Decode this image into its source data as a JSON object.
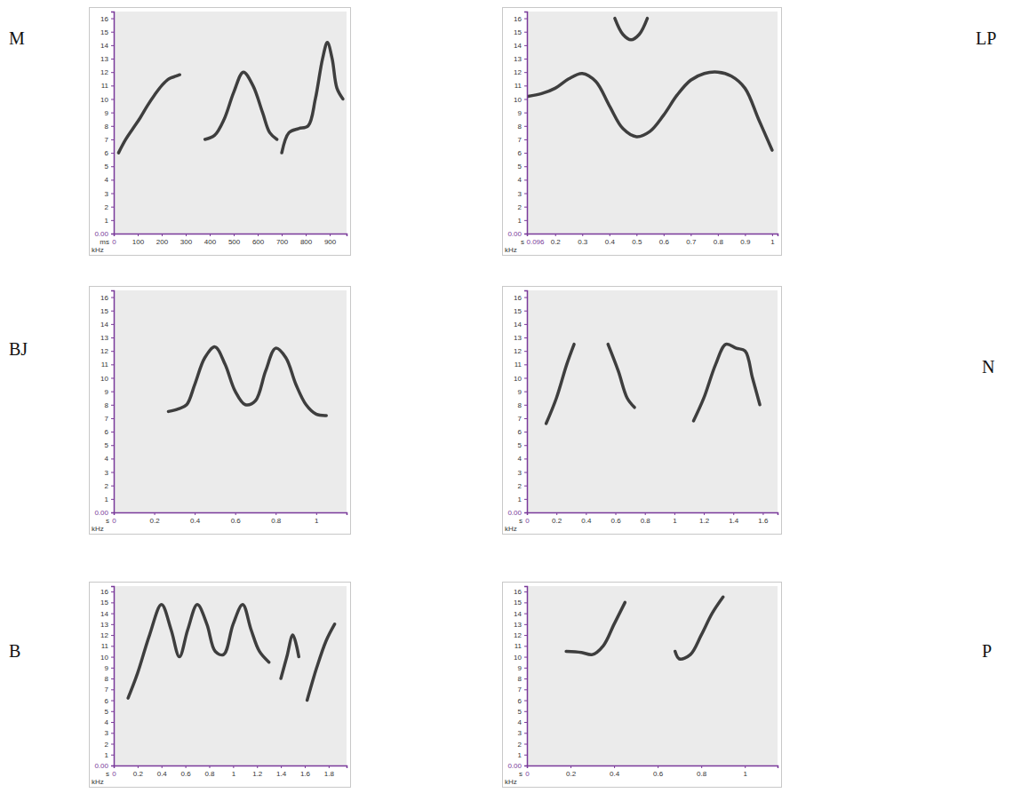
{
  "chart_data": [
    {
      "type": "line",
      "title": "M",
      "x_label": "ms",
      "y_label": "kHz",
      "xlim": [
        0,
        970
      ],
      "xticks": [
        0,
        100,
        200,
        300,
        400,
        500,
        600,
        700,
        800,
        900
      ],
      "ylim": [
        0,
        16.5
      ],
      "yticks": [
        {
          "value": 0,
          "label": "0.00"
        },
        1,
        2,
        3,
        4,
        5,
        6,
        7,
        8,
        9,
        10,
        11,
        12,
        13,
        14,
        15,
        16
      ],
      "series": [
        {
          "color": "#2b2b2b",
          "x": [
            20,
            50,
            80,
            110,
            140,
            170,
            200,
            230,
            260,
            275
          ],
          "values": [
            6.0,
            7.0,
            7.8,
            8.6,
            9.5,
            10.3,
            11.0,
            11.5,
            11.7,
            11.8
          ]
        },
        {
          "color": "#2b2b2b",
          "x": [
            380,
            420,
            460,
            500,
            540,
            580,
            620,
            650,
            680
          ],
          "values": [
            7.0,
            7.3,
            8.5,
            10.5,
            12.0,
            11.0,
            9.0,
            7.5,
            7.0
          ]
        },
        {
          "color": "#2b2b2b",
          "x": [
            700,
            730,
            770,
            810,
            840,
            870,
            890,
            910,
            930,
            955
          ],
          "values": [
            6.0,
            7.5,
            7.8,
            8.0,
            10.0,
            13.0,
            14.2,
            13.0,
            10.8,
            10.0
          ]
        }
      ]
    },
    {
      "type": "line",
      "title": "LP",
      "x_label": "s",
      "y_label": "kHz",
      "xlim": [
        0.096,
        1.02
      ],
      "xticks": [
        0.096,
        0.2,
        0.3,
        0.4,
        0.5,
        0.6,
        0.7,
        0.8,
        0.9,
        1
      ],
      "ylim": [
        0,
        16.5
      ],
      "yticks": [
        {
          "value": 0,
          "label": "0.00"
        },
        1,
        2,
        3,
        4,
        5,
        6,
        7,
        8,
        9,
        10,
        11,
        12,
        13,
        14,
        15,
        16
      ],
      "series": [
        {
          "color": "#2b2b2b",
          "x": [
            0.1,
            0.15,
            0.2,
            0.25,
            0.3,
            0.35,
            0.4,
            0.45,
            0.5,
            0.55,
            0.6,
            0.65,
            0.7,
            0.75,
            0.8,
            0.85,
            0.9,
            0.95,
            1.0
          ],
          "values": [
            10.2,
            10.4,
            10.8,
            11.5,
            11.9,
            11.3,
            9.5,
            7.8,
            7.2,
            7.6,
            8.8,
            10.3,
            11.4,
            11.9,
            12.0,
            11.7,
            10.8,
            8.5,
            6.2
          ]
        },
        {
          "color": "#2b2b2b",
          "x": [
            0.42,
            0.45,
            0.48,
            0.51,
            0.54
          ],
          "values": [
            16.0,
            14.8,
            14.4,
            14.8,
            16.0
          ]
        }
      ]
    },
    {
      "type": "line",
      "title": "BJ",
      "x_label": "s",
      "y_label": "kHz",
      "xlim": [
        0,
        1.15
      ],
      "xticks": [
        0,
        0.2,
        0.4,
        0.6,
        0.8,
        1
      ],
      "ylim": [
        0,
        16.5
      ],
      "yticks": [
        {
          "value": 0,
          "label": "0.00"
        },
        1,
        2,
        3,
        4,
        5,
        6,
        7,
        8,
        9,
        10,
        11,
        12,
        13,
        14,
        15,
        16
      ],
      "series": [
        {
          "color": "#2b2b2b",
          "x": [
            0.27,
            0.32,
            0.36,
            0.4,
            0.45,
            0.5,
            0.55,
            0.6,
            0.65,
            0.7,
            0.75,
            0.8,
            0.85,
            0.9,
            0.95,
            1.0,
            1.05
          ],
          "values": [
            7.5,
            7.7,
            8.0,
            9.5,
            11.5,
            12.3,
            11.0,
            9.0,
            8.0,
            8.3,
            10.5,
            12.2,
            11.5,
            9.5,
            8.0,
            7.3,
            7.2
          ]
        }
      ]
    },
    {
      "type": "line",
      "title": "N",
      "x_label": "s",
      "y_label": "kHz",
      "xlim": [
        0,
        1.7
      ],
      "xticks": [
        0,
        0.2,
        0.4,
        0.6,
        0.8,
        1,
        1.2,
        1.4,
        1.6
      ],
      "ylim": [
        0,
        16.5
      ],
      "yticks": [
        {
          "value": 0,
          "label": "0.00"
        },
        1,
        2,
        3,
        4,
        5,
        6,
        7,
        8,
        9,
        10,
        11,
        12,
        13,
        14,
        15,
        16
      ],
      "series": [
        {
          "color": "#2b2b2b",
          "x": [
            0.13,
            0.2,
            0.27,
            0.32
          ],
          "values": [
            6.6,
            8.5,
            11.0,
            12.5
          ]
        },
        {
          "color": "#2b2b2b",
          "x": [
            0.55,
            0.62,
            0.68,
            0.73
          ],
          "values": [
            12.5,
            10.5,
            8.5,
            7.8
          ]
        },
        {
          "color": "#2b2b2b",
          "x": [
            1.13,
            1.2,
            1.28,
            1.35,
            1.42,
            1.48,
            1.53,
            1.58
          ],
          "values": [
            6.8,
            8.5,
            11.0,
            12.5,
            12.2,
            12.0,
            10.0,
            8.0
          ]
        }
      ]
    },
    {
      "type": "line",
      "title": "B",
      "x_label": "s",
      "y_label": "kHz",
      "xlim": [
        0,
        1.95
      ],
      "xticks": [
        0,
        0.2,
        0.4,
        0.6,
        0.8,
        1,
        1.2,
        1.4,
        1.6,
        1.8
      ],
      "ylim": [
        0,
        16.5
      ],
      "yticks": [
        {
          "value": 0,
          "label": "0.00"
        },
        1,
        2,
        3,
        4,
        5,
        6,
        7,
        8,
        9,
        10,
        11,
        12,
        13,
        14,
        15,
        16
      ],
      "series": [
        {
          "color": "#2b2b2b",
          "x": [
            0.12,
            0.2,
            0.3,
            0.4,
            0.48,
            0.55,
            0.62,
            0.7,
            0.78,
            0.85,
            0.92,
            1.0,
            1.08,
            1.15,
            1.22,
            1.3
          ],
          "values": [
            6.2,
            8.5,
            12.0,
            14.8,
            12.5,
            10.0,
            12.5,
            14.8,
            13.0,
            10.5,
            10.2,
            13.0,
            14.8,
            12.5,
            10.5,
            9.5
          ]
        },
        {
          "color": "#2b2b2b",
          "x": [
            1.4,
            1.45,
            1.5,
            1.55
          ],
          "values": [
            8.0,
            10.0,
            12.0,
            10.0
          ]
        },
        {
          "color": "#2b2b2b",
          "x": [
            1.62,
            1.7,
            1.78,
            1.85
          ],
          "values": [
            6.0,
            9.0,
            11.5,
            13.0
          ]
        }
      ]
    },
    {
      "type": "line",
      "title": "P",
      "x_label": "s",
      "y_label": "kHz",
      "xlim": [
        0,
        1.15
      ],
      "xticks": [
        0,
        0.2,
        0.4,
        0.6,
        0.8,
        1
      ],
      "ylim": [
        0,
        16.5
      ],
      "yticks": [
        {
          "value": 0,
          "label": "0.00"
        },
        1,
        2,
        3,
        4,
        5,
        6,
        7,
        8,
        9,
        10,
        11,
        12,
        13,
        14,
        15,
        16
      ],
      "series": [
        {
          "color": "#2b2b2b",
          "x": [
            0.18,
            0.25,
            0.3,
            0.35,
            0.4,
            0.45
          ],
          "values": [
            10.5,
            10.4,
            10.2,
            11.0,
            13.0,
            15.0
          ]
        },
        {
          "color": "#2b2b2b",
          "x": [
            0.68,
            0.7,
            0.75,
            0.8,
            0.85,
            0.9
          ],
          "values": [
            10.5,
            9.8,
            10.2,
            12.0,
            14.0,
            15.5
          ]
        }
      ]
    }
  ]
}
